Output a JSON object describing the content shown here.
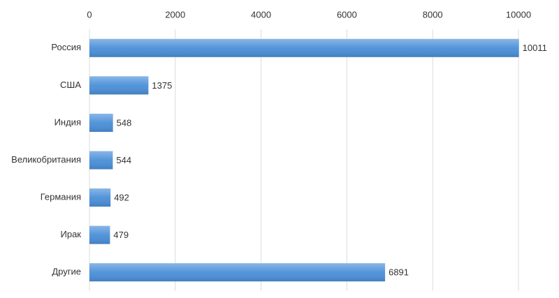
{
  "chart_data": {
    "type": "bar",
    "orientation": "horizontal",
    "categories": [
      "Россия",
      "США",
      "Индия",
      "Великобритания",
      "Германия",
      "Ирак",
      "Другие"
    ],
    "values": [
      10011,
      1375,
      548,
      544,
      492,
      479,
      6891
    ],
    "color": "#4a8fd8",
    "xlim": [
      0,
      10000
    ],
    "xticks": [
      0,
      2000,
      4000,
      6000,
      8000,
      10000
    ],
    "grid": true
  }
}
